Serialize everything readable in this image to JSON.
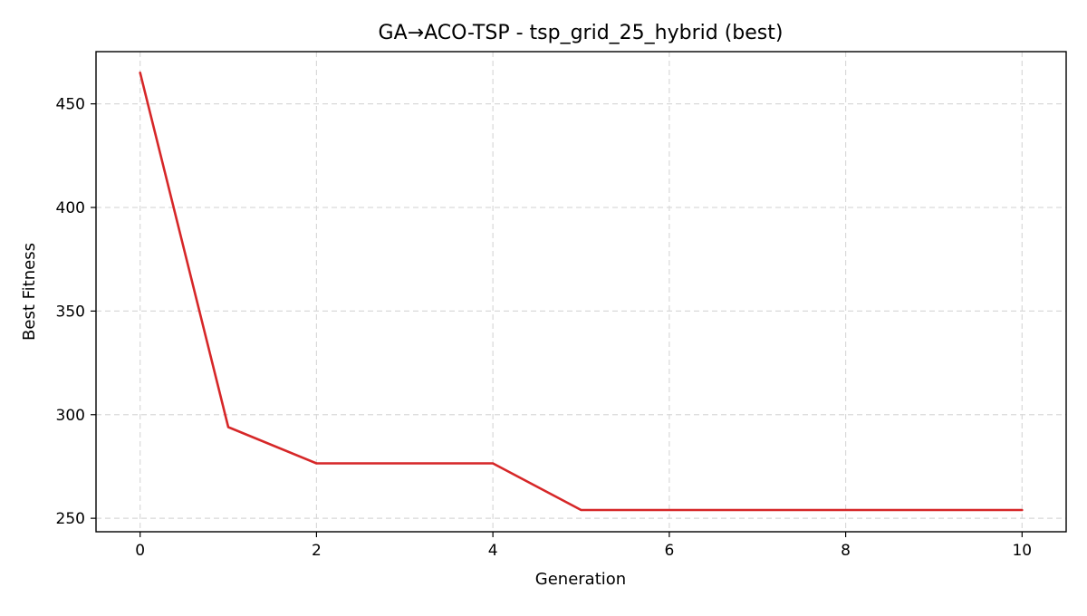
{
  "chart_data": {
    "type": "line",
    "title": "GA→ACO-TSP - tsp_grid_25_hybrid (best)",
    "xlabel": "Generation",
    "ylabel": "Best Fitness",
    "xlim": [
      -0.5,
      10.5
    ],
    "ylim": [
      243.5,
      475.2
    ],
    "xticks": [
      0,
      2,
      4,
      6,
      8,
      10
    ],
    "yticks": [
      250,
      300,
      350,
      400,
      450
    ],
    "grid": true,
    "series": [
      {
        "color": "#d62728",
        "x": [
          0,
          1,
          2,
          3,
          4,
          5,
          6,
          7,
          8,
          9,
          10
        ],
        "values": [
          465,
          294,
          276.5,
          276.5,
          276.5,
          254,
          254,
          254,
          254,
          254,
          254
        ]
      }
    ]
  }
}
